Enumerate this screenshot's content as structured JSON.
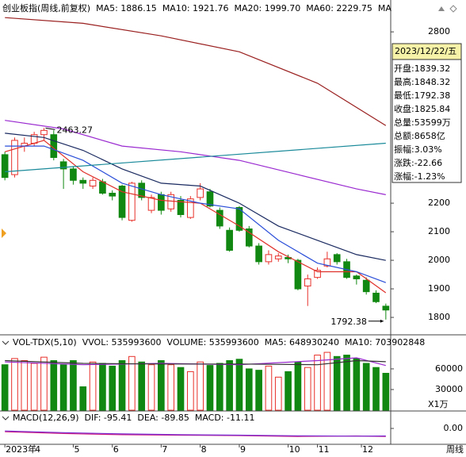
{
  "header": {
    "title": "创业板指(周线,前复权)"
  },
  "period": "周线",
  "info_box": {
    "date": "2023/12/22/五",
    "rows": [
      "开盘:1839.32",
      "最高:1848.32",
      "最低:1792.38",
      "收盘:1825.84",
      "总量:53599万",
      "总额:8658亿",
      "振幅:3.03%",
      "涨跌:-22.66",
      "涨幅:-1.23%"
    ]
  },
  "chart_data": [
    {
      "type": "candlestick",
      "up_color": "#e8302a",
      "down_color": "#118811",
      "open": [
        2370,
        2300,
        2400,
        2410,
        2440,
        2440,
        2345,
        2320,
        2280,
        2260,
        2275,
        2235,
        2260,
        2140,
        2270,
        2175,
        2230,
        2180,
        2210,
        2150,
        2220,
        2240,
        2175,
        2105,
        2185,
        2110,
        2050,
        1995,
        2005,
        2010,
        2000,
        1910,
        1940,
        1980,
        2020,
        1995,
        1945,
        1930,
        1885,
        1839.32
      ],
      "high": [
        2380,
        2430,
        2430,
        2450,
        2463.27,
        2455,
        2355,
        2330,
        2290,
        2290,
        2285,
        2245,
        2265,
        2275,
        2280,
        2230,
        2240,
        2240,
        2225,
        2225,
        2270,
        2250,
        2185,
        2115,
        2190,
        2120,
        2060,
        2035,
        2025,
        2020,
        2005,
        1950,
        1975,
        2030,
        2025,
        2005,
        1950,
        1940,
        1895,
        1848.32
      ],
      "low": [
        2280,
        2290,
        2380,
        2400,
        2420,
        2350,
        2250,
        2265,
        2250,
        2250,
        2230,
        2210,
        2140,
        2135,
        2210,
        2165,
        2160,
        2170,
        2150,
        2145,
        2210,
        2185,
        2110,
        2030,
        2100,
        2045,
        1985,
        1985,
        1995,
        1990,
        1895,
        1840,
        1935,
        1975,
        1985,
        1935,
        1915,
        1880,
        1850,
        1792.38
      ],
      "close": [
        2290,
        2420,
        2410,
        2440,
        2455,
        2360,
        2320,
        2280,
        2270,
        2280,
        2235,
        2225,
        2150,
        2270,
        2220,
        2220,
        2175,
        2230,
        2160,
        2215,
        2250,
        2190,
        2120,
        2035,
        2105,
        2050,
        1995,
        2020,
        2015,
        2005,
        1900,
        1935,
        1965,
        2005,
        1995,
        1940,
        1935,
        1890,
        1855,
        1825.84
      ],
      "lines": [
        {
          "name": "MA5: 1886.15",
          "color": "#e0302a",
          "x": [
            0,
            4,
            8,
            12,
            16,
            20,
            24,
            28,
            32,
            36,
            39
          ],
          "values": [
            2380,
            2420,
            2310,
            2240,
            2210,
            2200,
            2120,
            2030,
            1960,
            1960,
            1886.15
          ]
        },
        {
          "name": "MA10: 1921.76",
          "color": "#2a4ed8",
          "x": [
            0,
            4,
            8,
            12,
            16,
            20,
            24,
            28,
            32,
            36,
            39
          ],
          "values": [
            2400,
            2400,
            2350,
            2270,
            2230,
            2200,
            2180,
            2070,
            1990,
            1960,
            1921.76
          ]
        },
        {
          "name": "MA20: 1999.70",
          "color": "#1a2a60",
          "x": [
            0,
            4,
            8,
            12,
            16,
            20,
            24,
            28,
            32,
            36,
            39
          ],
          "values": [
            2445,
            2430,
            2385,
            2320,
            2270,
            2260,
            2200,
            2120,
            2070,
            2020,
            1999.7
          ]
        },
        {
          "name": "MA60: 2229.75",
          "color": "#9a2ad0",
          "x": [
            0,
            6,
            12,
            18,
            24,
            30,
            36,
            39
          ],
          "values": [
            2490,
            2460,
            2400,
            2380,
            2350,
            2300,
            2250,
            2229.75
          ]
        },
        {
          "name": "MA",
          "color": "#9a1f1f",
          "x": [
            0,
            8,
            16,
            24,
            32,
            39
          ],
          "values": [
            2850,
            2830,
            2786,
            2730,
            2620,
            2472
          ]
        },
        {
          "color": "#1a8a9a",
          "x": [
            0,
            39
          ],
          "values": [
            2310,
            2410
          ]
        }
      ],
      "ylim": [
        1739,
        2856
      ],
      "yticks": [
        1800,
        1900,
        2000,
        2100,
        2200,
        2800
      ],
      "annotations": [
        {
          "x": 4,
          "value": 2463.27
        },
        {
          "x": 39,
          "value": 1792.38
        }
      ],
      "xticks": [
        {
          "value": 0,
          "label": "2023年"
        },
        {
          "value": 3,
          "label": "4"
        },
        {
          "value": 7,
          "label": "5"
        },
        {
          "value": 11,
          "label": "6"
        },
        {
          "value": 16,
          "label": "7"
        },
        {
          "value": 20,
          "label": "8"
        },
        {
          "value": 24,
          "label": "9"
        },
        {
          "value": 29,
          "label": "10"
        },
        {
          "value": 32,
          "label": "11"
        },
        {
          "value": 36.5,
          "label": "12"
        }
      ]
    },
    {
      "type": "bar",
      "header_items": [
        {
          "text": "VOL-TDX(5,10)",
          "color": "#000000"
        },
        {
          "text": "VVOL: 535993600",
          "color": "#d02020"
        },
        {
          "text": "VOLUME: 535993600",
          "color": "#2040c0"
        },
        {
          "text": "MA5: 648930240",
          "color": "#9a2ad0"
        },
        {
          "text": "MA10: 703902848",
          "color": "#333333"
        }
      ],
      "values": [
        66000,
        75000,
        72000,
        68000,
        77000,
        72000,
        66000,
        72000,
        34000,
        70000,
        68000,
        64000,
        72000,
        78000,
        70000,
        66000,
        72000,
        66000,
        62000,
        56000,
        70000,
        65000,
        68000,
        72000,
        74000,
        60000,
        58000,
        64000,
        48000,
        56000,
        70000,
        62000,
        80000,
        84000,
        78000,
        80000,
        75000,
        68000,
        62000,
        53599
      ],
      "lines": [
        {
          "color": "#9a2ad0",
          "x": [
            0,
            8,
            16,
            24,
            32,
            36,
            39
          ],
          "values": [
            70000,
            66000,
            68000,
            66000,
            72000,
            76000,
            64893
          ]
        },
        {
          "color": "#333333",
          "x": [
            0,
            8,
            16,
            24,
            32,
            36,
            39
          ],
          "values": [
            72000,
            68000,
            67000,
            67000,
            66000,
            72000,
            70390
          ]
        }
      ],
      "ylim": [
        0,
        106000
      ],
      "yticks": [
        30000,
        60000
      ],
      "unit_label": "X1万"
    },
    {
      "type": "line",
      "header_items": [
        {
          "text": "MACD(12,26,9)",
          "color": "#000000"
        },
        {
          "text": "DIF: -95.41",
          "color": "#d02020"
        },
        {
          "text": "DEA: -89.85",
          "color": "#9a2ad0"
        },
        {
          "text": "MACD: -11.11",
          "color": "#000000"
        }
      ],
      "lines": [
        {
          "color": "#d02080",
          "x": [
            0,
            6,
            12,
            18,
            24,
            30,
            36,
            39
          ],
          "values": [
            -40,
            -60,
            -75,
            -80,
            -85,
            -95,
            -90,
            -95.41
          ]
        },
        {
          "color": "#7a2ad0",
          "x": [
            0,
            6,
            12,
            18,
            24,
            30,
            36,
            39
          ],
          "values": [
            -30,
            -50,
            -65,
            -75,
            -80,
            -88,
            -92,
            -89.85
          ]
        }
      ],
      "ylim": [
        -170,
        170
      ],
      "yticks": [
        {
          "value": 0,
          "label": "0.00"
        }
      ]
    }
  ]
}
